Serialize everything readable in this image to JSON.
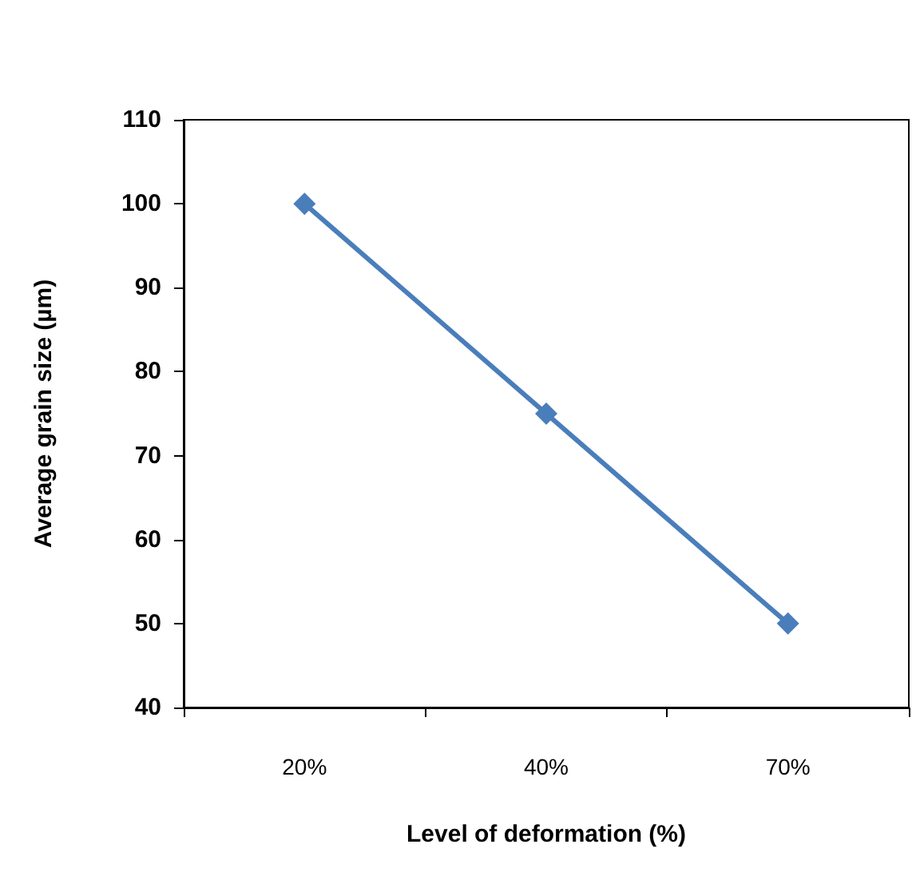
{
  "chart_data": {
    "type": "line",
    "xlabel": "Level of deformation (%)",
    "ylabel": "Average grain size (µm)",
    "categories": [
      "20%",
      "40%",
      "70%"
    ],
    "series": [
      {
        "color": "#4a7ebb",
        "values": [
          100,
          75,
          50
        ]
      }
    ],
    "ylim": [
      40,
      110
    ],
    "yticks": [
      40,
      50,
      60,
      70,
      80,
      90,
      100,
      110
    ],
    "grid": false,
    "marker": "diamond",
    "line_style": "solid"
  }
}
